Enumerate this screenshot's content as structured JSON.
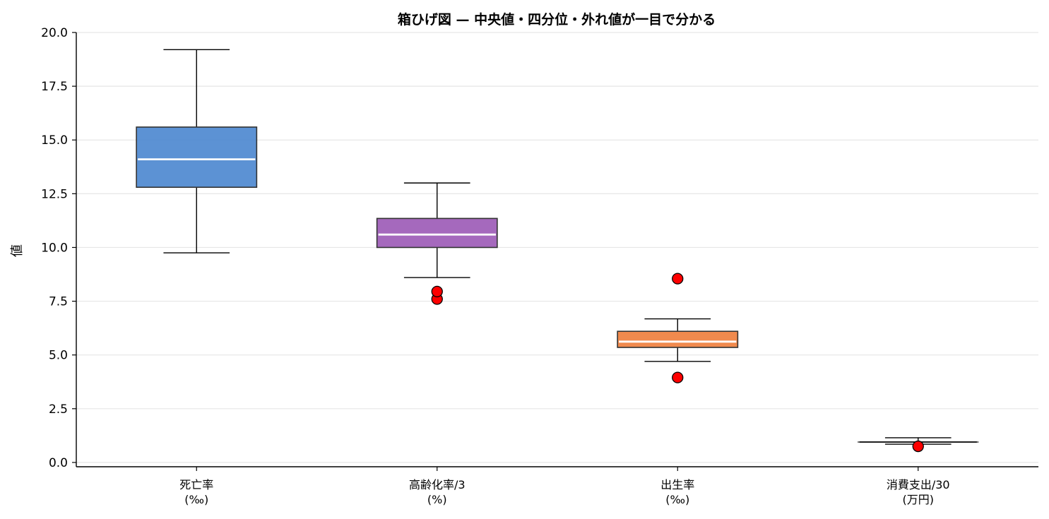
{
  "chart_data": {
    "type": "box",
    "title": "箱ひげ図 — 中央値・四分位・外れ値が一目で分かる",
    "xlabel": "",
    "ylabel": "値",
    "ylim": [
      -0.2,
      20.0
    ],
    "yticks": [
      "0.0",
      "2.5",
      "5.0",
      "7.5",
      "10.0",
      "12.5",
      "15.0",
      "17.5",
      "20.0"
    ],
    "grid": "y",
    "boxes": [
      {
        "label_line1": "死亡率",
        "label_line2": "(‰)",
        "whisker_low": 9.75,
        "q1": 12.8,
        "median": 14.1,
        "q3": 15.6,
        "whisker_high": 19.2,
        "outliers": [],
        "color": "#4a86cf"
      },
      {
        "label_line1": "高齢化率/3",
        "label_line2": "(%)",
        "whisker_low": 8.6,
        "q1": 10.0,
        "median": 10.6,
        "q3": 11.35,
        "whisker_high": 13.0,
        "outliers": [
          7.6,
          7.95
        ],
        "color": "#9b59b6"
      },
      {
        "label_line1": "出生率",
        "label_line2": "(‰)",
        "whisker_low": 4.7,
        "q1": 5.35,
        "median": 5.62,
        "q3": 6.1,
        "whisker_high": 6.68,
        "outliers": [
          3.95,
          8.55
        ],
        "color": "#ee7d3b"
      },
      {
        "label_line1": "消費支出/30",
        "label_line2": "(万円)",
        "whisker_low": 0.85,
        "q1": 0.93,
        "median": 0.95,
        "q3": 0.97,
        "whisker_high": 1.15,
        "outliers": [
          0.75
        ],
        "color": "#bbbbbb"
      }
    ],
    "outlier_color": "#ff0000",
    "median_color": "#ffffff"
  }
}
